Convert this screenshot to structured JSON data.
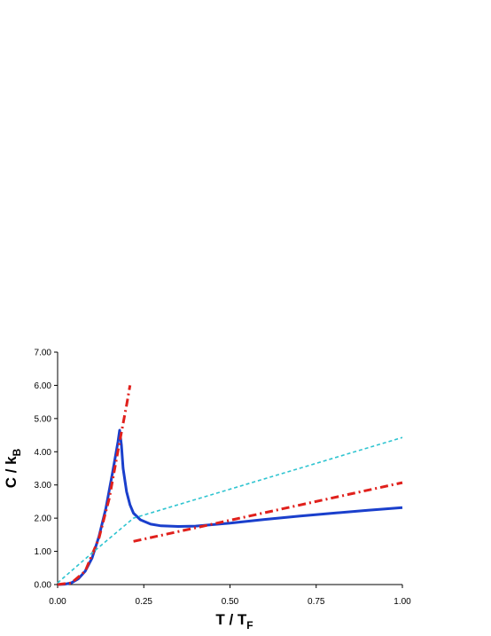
{
  "chart_data": {
    "type": "line",
    "title": "",
    "xlabel": {
      "main": "T / T",
      "sub": "F"
    },
    "ylabel": {
      "main": "C / k",
      "sub": "B"
    },
    "xlim": [
      0,
      1
    ],
    "ylim": [
      0,
      7
    ],
    "x_ticks": [
      "0.00",
      "0.25",
      "0.50",
      "0.75",
      "1.00"
    ],
    "y_ticks": [
      "0.00",
      "1.00",
      "2.00",
      "3.00",
      "4.00",
      "5.00",
      "6.00",
      "7.00"
    ],
    "grid": false,
    "legend": "none",
    "series": [
      {
        "color": "#1a3fcc",
        "style": "solid",
        "x": [
          0.0,
          0.02,
          0.04,
          0.06,
          0.08,
          0.1,
          0.12,
          0.14,
          0.16,
          0.175,
          0.18,
          0.185,
          0.19,
          0.2,
          0.21,
          0.22,
          0.24,
          0.27,
          0.3,
          0.35,
          0.4,
          0.5,
          0.6,
          0.7,
          0.8,
          0.9,
          1.0
        ],
        "y": [
          0.0,
          0.01,
          0.05,
          0.17,
          0.4,
          0.8,
          1.45,
          2.3,
          3.4,
          4.3,
          4.65,
          4.2,
          3.5,
          2.8,
          2.4,
          2.15,
          1.95,
          1.82,
          1.77,
          1.75,
          1.76,
          1.85,
          1.96,
          2.06,
          2.15,
          2.24,
          2.32
        ]
      },
      {
        "color": "#e0201c",
        "style": "dashdot",
        "x": [
          0.0,
          0.04,
          0.08,
          0.12,
          0.15,
          0.18,
          0.2,
          0.21
        ],
        "y": [
          0.0,
          0.05,
          0.4,
          1.4,
          2.6,
          4.3,
          5.4,
          6.0
        ]
      },
      {
        "color": "#e0201c",
        "style": "dashdot",
        "x": [
          0.22,
          1.0
        ],
        "y": [
          1.3,
          3.07
        ]
      },
      {
        "color": "#2ec4d0",
        "style": "dashed",
        "x": [
          0.0,
          0.1,
          0.22,
          1.0
        ],
        "y": [
          0.05,
          0.95,
          2.0,
          4.43
        ]
      }
    ]
  }
}
